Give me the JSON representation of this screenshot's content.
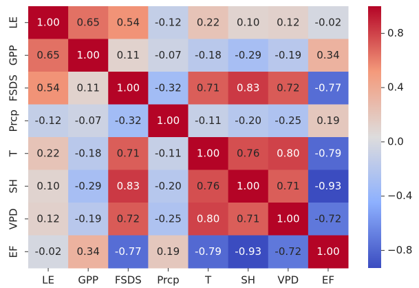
{
  "chart_data": {
    "type": "heatmap",
    "x_categories": [
      "LE",
      "GPP",
      "FSDS",
      "Prcp",
      "T",
      "SH",
      "VPD",
      "EF"
    ],
    "y_categories": [
      "LE",
      "GPP",
      "FSDS",
      "Prcp",
      "T",
      "SH",
      "VPD",
      "EF"
    ],
    "values": [
      [
        1.0,
        0.65,
        0.54,
        -0.12,
        0.22,
        0.1,
        0.12,
        -0.02
      ],
      [
        0.65,
        1.0,
        0.11,
        -0.07,
        -0.18,
        -0.29,
        -0.19,
        0.34
      ],
      [
        0.54,
        0.11,
        1.0,
        -0.32,
        0.71,
        0.83,
        0.72,
        -0.77
      ],
      [
        -0.12,
        -0.07,
        -0.32,
        1.0,
        -0.11,
        -0.2,
        -0.25,
        0.19
      ],
      [
        0.22,
        -0.18,
        0.71,
        -0.11,
        1.0,
        0.76,
        0.8,
        -0.79
      ],
      [
        0.1,
        -0.29,
        0.83,
        -0.2,
        0.76,
        1.0,
        0.71,
        -0.93
      ],
      [
        0.12,
        -0.19,
        0.72,
        -0.25,
        0.8,
        0.71,
        1.0,
        -0.72
      ],
      [
        -0.02,
        0.34,
        -0.77,
        0.19,
        -0.79,
        -0.93,
        -0.72,
        1.0
      ]
    ],
    "value_labels": [
      [
        "1.00",
        "0.65",
        "0.54",
        "-0.12",
        "0.22",
        "0.10",
        "0.12",
        "-0.02"
      ],
      [
        "0.65",
        "1.00",
        "0.11",
        "-0.07",
        "-0.18",
        "-0.29",
        "-0.19",
        "0.34"
      ],
      [
        "0.54",
        "0.11",
        "1.00",
        "-0.32",
        "0.71",
        "0.83",
        "0.72",
        "-0.77"
      ],
      [
        "-0.12",
        "-0.07",
        "-0.32",
        "1.00",
        "-0.11",
        "-0.20",
        "-0.25",
        "0.19"
      ],
      [
        "0.22",
        "-0.18",
        "0.71",
        "-0.11",
        "1.00",
        "0.76",
        "0.80",
        "-0.79"
      ],
      [
        "0.10",
        "-0.29",
        "0.83",
        "-0.20",
        "0.76",
        "1.00",
        "0.71",
        "-0.93"
      ],
      [
        "0.12",
        "-0.19",
        "0.72",
        "-0.25",
        "0.80",
        "0.71",
        "1.00",
        "-0.72"
      ],
      [
        "-0.02",
        "0.34",
        "-0.77",
        "0.19",
        "-0.79",
        "-0.93",
        "-0.72",
        "1.00"
      ]
    ],
    "colormap": "coolwarm",
    "clim": [
      -0.93,
      1.0
    ],
    "cbar_ticks": [
      {
        "value": -0.8,
        "label": "−0.8"
      },
      {
        "value": -0.4,
        "label": "−0.4"
      },
      {
        "value": 0,
        "label": "0.0"
      },
      0.4,
      0.8
    ]
  }
}
